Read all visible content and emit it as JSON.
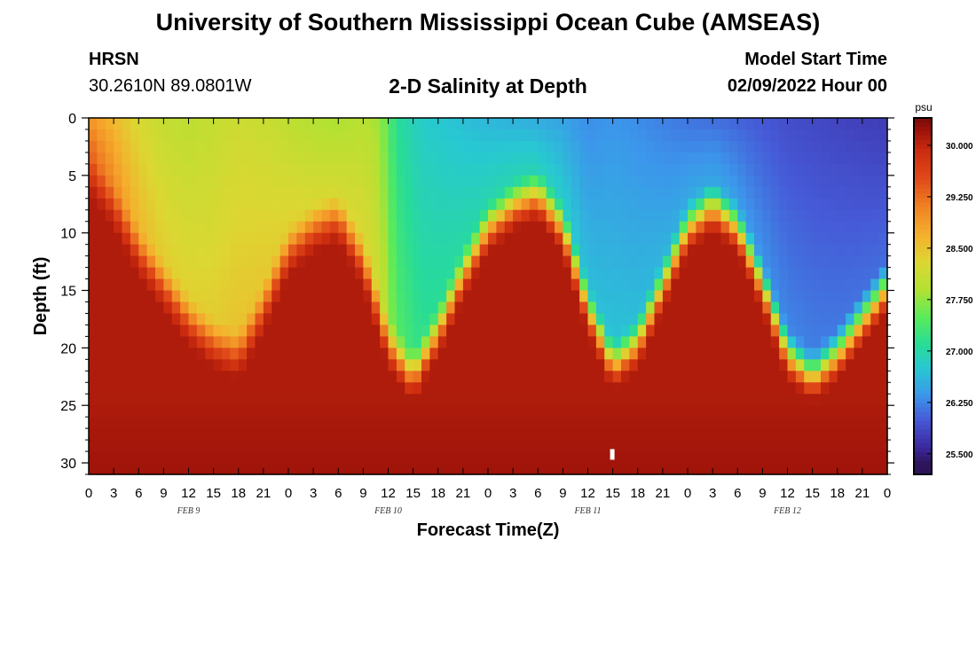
{
  "header": {
    "title": "University of Southern Mississippi Ocean Cube (AMSEAS)",
    "station": "HRSN",
    "coordinates": "30.2610N  89.0801W",
    "subtitle": "2-D Salinity at Depth",
    "model_start_label": "Model Start Time",
    "model_start_value": "02/09/2022 Hour 00"
  },
  "footer": {
    "title": "University of Southern Mississippi Ocean Cube (AMSEAS)"
  },
  "chart_data": {
    "type": "heatmap",
    "title": "2-D Salinity at Depth",
    "xlabel": "Forecast Time(Z)",
    "ylabel": "Depth (ft)",
    "x_range_hours": [
      0,
      96
    ],
    "y_range_ft": [
      0,
      31
    ],
    "x_tick_labels": [
      "0",
      "3",
      "6",
      "9",
      "12",
      "15",
      "18",
      "21",
      "0",
      "3",
      "6",
      "9",
      "12",
      "15",
      "18",
      "21",
      "0",
      "3",
      "6",
      "9",
      "12",
      "15",
      "18",
      "21",
      "0",
      "3",
      "6",
      "9",
      "12",
      "15",
      "18",
      "21",
      "0"
    ],
    "y_ticks": [
      0,
      5,
      10,
      15,
      20,
      25,
      30
    ],
    "date_labels": [
      {
        "label": "FEB 9",
        "hour": 12
      },
      {
        "label": "FEB 10",
        "hour": 36
      },
      {
        "label": "FEB 11",
        "hour": 60
      },
      {
        "label": "FEB 12",
        "hour": 84
      }
    ],
    "colorbar": {
      "unit": "psu",
      "range": [
        25.2,
        30.4
      ],
      "tick_labels": [
        "30.000",
        "29.250",
        "28.500",
        "27.750",
        "27.000",
        "26.250",
        "25.500"
      ],
      "tick_values": [
        30.0,
        29.25,
        28.5,
        27.75,
        27.0,
        26.25,
        25.5
      ]
    },
    "surface_salinity_by_hour": [
      [
        0,
        28.9
      ],
      [
        3,
        28.6
      ],
      [
        6,
        28.25
      ],
      [
        9,
        28.05
      ],
      [
        12,
        28.0
      ],
      [
        15,
        28.05
      ],
      [
        18,
        28.15
      ],
      [
        21,
        28.1
      ],
      [
        24,
        28.0
      ],
      [
        27,
        27.9
      ],
      [
        30,
        27.85
      ],
      [
        33,
        27.95
      ],
      [
        35,
        27.8
      ],
      [
        37,
        27.1
      ],
      [
        40,
        26.8
      ],
      [
        44,
        26.7
      ],
      [
        48,
        26.6
      ],
      [
        52,
        26.55
      ],
      [
        57,
        26.45
      ],
      [
        60,
        26.3
      ],
      [
        63,
        26.35
      ],
      [
        66,
        26.3
      ],
      [
        70,
        26.2
      ],
      [
        72,
        26.15
      ],
      [
        76,
        26.1
      ],
      [
        80,
        26.0
      ],
      [
        84,
        25.9
      ],
      [
        88,
        25.85
      ],
      [
        92,
        25.8
      ],
      [
        96,
        25.75
      ]
    ],
    "halocline_depth_ft_by_hour": [
      [
        0,
        2
      ],
      [
        3,
        5
      ],
      [
        6,
        9
      ],
      [
        9,
        12
      ],
      [
        12,
        15
      ],
      [
        15,
        17
      ],
      [
        18,
        18
      ],
      [
        21,
        14
      ],
      [
        24,
        9
      ],
      [
        27,
        7
      ],
      [
        30,
        6
      ],
      [
        33,
        10
      ],
      [
        36,
        17
      ],
      [
        39,
        20
      ],
      [
        42,
        16
      ],
      [
        45,
        11
      ],
      [
        48,
        7
      ],
      [
        51,
        5
      ],
      [
        54,
        4
      ],
      [
        57,
        7
      ],
      [
        60,
        14
      ],
      [
        63,
        19
      ],
      [
        66,
        17
      ],
      [
        69,
        12
      ],
      [
        72,
        7
      ],
      [
        75,
        5
      ],
      [
        78,
        7
      ],
      [
        81,
        12
      ],
      [
        84,
        18
      ],
      [
        87,
        20
      ],
      [
        90,
        18
      ],
      [
        93,
        15
      ],
      [
        96,
        12
      ]
    ],
    "bottom_salinity_psu": 30.1,
    "notes": "Low-salinity (blue/green) upper layer deepens to ~20 ft at hours ~16, ~39, ~63, ~87; high-salinity (red) water fills the column below."
  }
}
